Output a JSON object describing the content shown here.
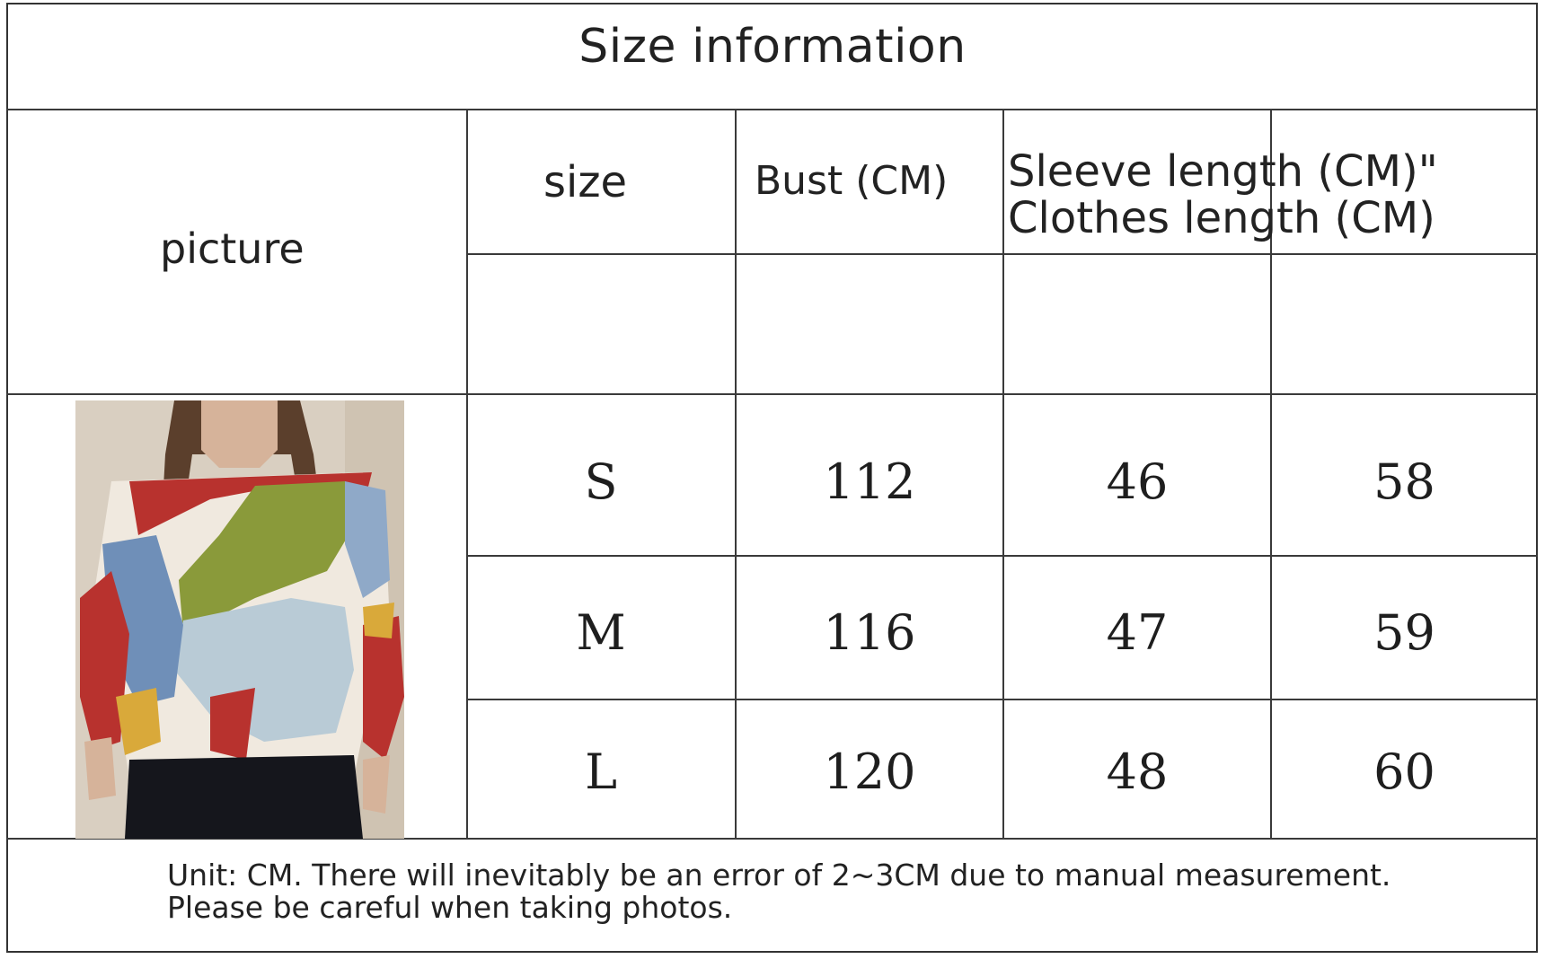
{
  "title": "Size information",
  "headers": {
    "picture": "picture",
    "size": "size",
    "bust": "Bust (CM)",
    "sleeve_line1": "Sleeve length (CM)\"",
    "sleeve_line2": "Clothes length (CM)"
  },
  "rows": [
    {
      "size": "S",
      "bust": "112",
      "sleeve": "46",
      "clothes": "58"
    },
    {
      "size": "M",
      "bust": "116",
      "sleeve": "47",
      "clothes": "59"
    },
    {
      "size": "L",
      "bust": "120",
      "sleeve": "48",
      "clothes": "60"
    }
  ],
  "note": {
    "line1": "Unit: CM. There will inevitably be an error of 2~3CM due to manual measurement.",
    "line2": "Please be careful when taking photos."
  },
  "image": {
    "subject": "model wearing multicolor patchwork sweater",
    "colors": {
      "background": "#d9cfc1",
      "red": "#b8322e",
      "olive": "#8a9a3a",
      "light_blue": "#b9cbd6",
      "blue": "#6f8fb8",
      "cream": "#f0e9df",
      "yellow": "#d9a93a",
      "pants": "#15161c"
    }
  }
}
